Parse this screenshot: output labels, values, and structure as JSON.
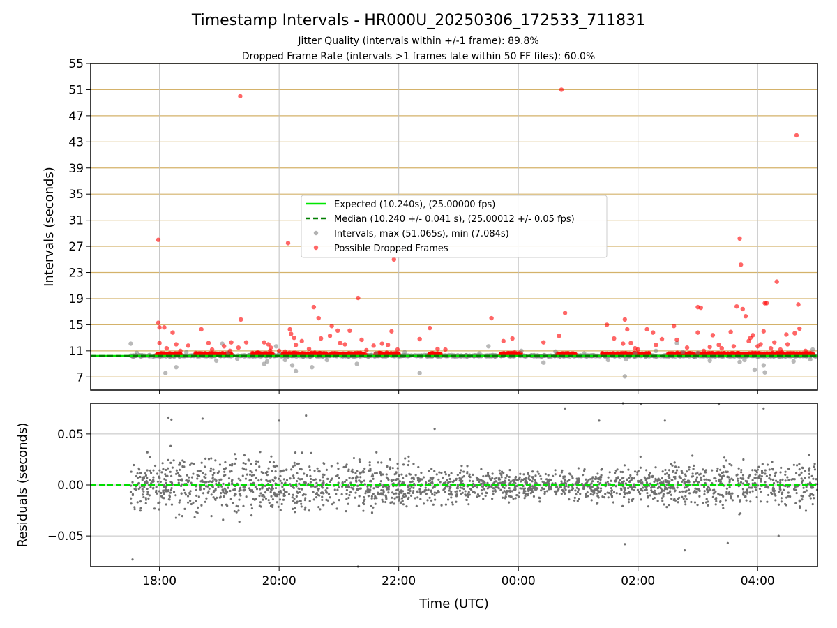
{
  "colors": {
    "expected_line": "#00e600",
    "median_line": "#007f00",
    "intervals_points": "#808080",
    "dropped_points": "#ff0000",
    "residual_points": "#707070",
    "zero_line": "#00dd00",
    "h_gridlines": "#d4b26a",
    "grid": "#c0c0c0",
    "frame": "#000000"
  },
  "chart_data": [
    {
      "type": "scatter",
      "panel": "intervals",
      "title": "Timestamp Intervals - HR000U_20250306_172533_711831",
      "subtitle_1": "Jitter Quality (intervals within +/-1 frame): 89.8%",
      "subtitle_2": "Dropped Frame Rate (intervals >1 frames late within 50 FF files): 60.0%",
      "xlabel": "",
      "ylabel": "Intervals (seconds)",
      "x_unit": "hours_utc",
      "xlim": [
        16.85,
        29.0
      ],
      "ylim": [
        5,
        55
      ],
      "y_ticks": [
        "7",
        "11",
        "15",
        "19",
        "23",
        "27",
        "31",
        "35",
        "39",
        "43",
        "47",
        "51",
        "55"
      ],
      "grid": true,
      "legend_position": "center",
      "legend": [
        "Expected (10.240s), (25.00000 fps)",
        "Median (10.240 +/- 0.041 s), (25.00012 +/- 0.05 fps)",
        "Intervals, max (51.065s), min (7.084s)",
        "Possible Dropped Frames"
      ],
      "expected_value": 10.24,
      "median_value": 10.24,
      "data_range": [
        17.52,
        29.0
      ],
      "dropped_outliers": [
        {
          "x": 17.98,
          "y": 28.0
        },
        {
          "x": 17.98,
          "y": 15.3
        },
        {
          "x": 18.0,
          "y": 14.6
        },
        {
          "x": 18.0,
          "y": 12.2
        },
        {
          "x": 18.08,
          "y": 14.6
        },
        {
          "x": 18.12,
          "y": 11.4
        },
        {
          "x": 18.22,
          "y": 13.8
        },
        {
          "x": 18.28,
          "y": 12.0
        },
        {
          "x": 18.35,
          "y": 11.0
        },
        {
          "x": 18.48,
          "y": 11.8
        },
        {
          "x": 18.7,
          "y": 14.3
        },
        {
          "x": 18.82,
          "y": 12.2
        },
        {
          "x": 18.88,
          "y": 11.2
        },
        {
          "x": 19.08,
          "y": 11.7
        },
        {
          "x": 19.18,
          "y": 11.0
        },
        {
          "x": 19.35,
          "y": 50.0
        },
        {
          "x": 19.36,
          "y": 15.8
        },
        {
          "x": 19.32,
          "y": 11.5
        },
        {
          "x": 19.45,
          "y": 12.3
        },
        {
          "x": 19.2,
          "y": 12.3
        },
        {
          "x": 19.75,
          "y": 12.3
        },
        {
          "x": 19.82,
          "y": 12.0
        },
        {
          "x": 19.86,
          "y": 11.5
        },
        {
          "x": 19.85,
          "y": 11.0
        },
        {
          "x": 20.0,
          "y": 11.0
        },
        {
          "x": 20.1,
          "y": 10.9
        },
        {
          "x": 20.15,
          "y": 27.5
        },
        {
          "x": 20.18,
          "y": 14.3
        },
        {
          "x": 20.2,
          "y": 13.6
        },
        {
          "x": 20.25,
          "y": 13.0
        },
        {
          "x": 20.28,
          "y": 11.9
        },
        {
          "x": 20.38,
          "y": 12.5
        },
        {
          "x": 20.5,
          "y": 11.3
        },
        {
          "x": 20.58,
          "y": 17.7
        },
        {
          "x": 20.66,
          "y": 16.0
        },
        {
          "x": 20.7,
          "y": 12.9
        },
        {
          "x": 20.85,
          "y": 13.3
        },
        {
          "x": 20.88,
          "y": 14.8
        },
        {
          "x": 20.98,
          "y": 14.1
        },
        {
          "x": 21.02,
          "y": 12.2
        },
        {
          "x": 21.1,
          "y": 12.0
        },
        {
          "x": 21.18,
          "y": 14.1
        },
        {
          "x": 21.32,
          "y": 19.1
        },
        {
          "x": 21.38,
          "y": 12.7
        },
        {
          "x": 21.46,
          "y": 11.1
        },
        {
          "x": 21.58,
          "y": 11.8
        },
        {
          "x": 21.72,
          "y": 12.1
        },
        {
          "x": 21.82,
          "y": 11.9
        },
        {
          "x": 21.88,
          "y": 14.0
        },
        {
          "x": 21.92,
          "y": 25.0
        },
        {
          "x": 21.98,
          "y": 11.2
        },
        {
          "x": 22.35,
          "y": 12.8
        },
        {
          "x": 22.52,
          "y": 14.5
        },
        {
          "x": 22.65,
          "y": 11.3
        },
        {
          "x": 22.78,
          "y": 11.2
        },
        {
          "x": 23.55,
          "y": 16.0
        },
        {
          "x": 23.75,
          "y": 12.5
        },
        {
          "x": 23.9,
          "y": 12.9
        },
        {
          "x": 24.42,
          "y": 12.3
        },
        {
          "x": 24.68,
          "y": 13.3
        },
        {
          "x": 24.72,
          "y": 51.0
        },
        {
          "x": 24.78,
          "y": 16.8
        },
        {
          "x": 25.48,
          "y": 15.0
        },
        {
          "x": 25.6,
          "y": 12.9
        },
        {
          "x": 25.75,
          "y": 12.1
        },
        {
          "x": 25.78,
          "y": 15.8
        },
        {
          "x": 25.82,
          "y": 14.3
        },
        {
          "x": 25.88,
          "y": 12.2
        },
        {
          "x": 25.95,
          "y": 11.4
        },
        {
          "x": 26.0,
          "y": 11.2
        },
        {
          "x": 26.15,
          "y": 14.3
        },
        {
          "x": 26.25,
          "y": 13.8
        },
        {
          "x": 26.3,
          "y": 11.9
        },
        {
          "x": 26.4,
          "y": 12.8
        },
        {
          "x": 26.6,
          "y": 14.8
        },
        {
          "x": 26.65,
          "y": 12.7
        },
        {
          "x": 26.82,
          "y": 11.5
        },
        {
          "x": 27.0,
          "y": 17.7
        },
        {
          "x": 27.05,
          "y": 17.6
        },
        {
          "x": 27.0,
          "y": 13.8
        },
        {
          "x": 27.1,
          "y": 11.0
        },
        {
          "x": 27.2,
          "y": 11.6
        },
        {
          "x": 27.25,
          "y": 13.4
        },
        {
          "x": 27.35,
          "y": 11.9
        },
        {
          "x": 27.4,
          "y": 11.4
        },
        {
          "x": 27.55,
          "y": 13.9
        },
        {
          "x": 27.6,
          "y": 11.7
        },
        {
          "x": 27.65,
          "y": 17.8
        },
        {
          "x": 27.7,
          "y": 28.2
        },
        {
          "x": 27.72,
          "y": 24.2
        },
        {
          "x": 27.75,
          "y": 17.4
        },
        {
          "x": 27.8,
          "y": 16.3
        },
        {
          "x": 27.85,
          "y": 12.5
        },
        {
          "x": 27.88,
          "y": 13.0
        },
        {
          "x": 27.92,
          "y": 13.4
        },
        {
          "x": 28.0,
          "y": 11.7
        },
        {
          "x": 28.05,
          "y": 12.0
        },
        {
          "x": 28.1,
          "y": 14.0
        },
        {
          "x": 28.12,
          "y": 18.3
        },
        {
          "x": 28.15,
          "y": 18.3
        },
        {
          "x": 28.22,
          "y": 11.4
        },
        {
          "x": 28.28,
          "y": 12.3
        },
        {
          "x": 28.32,
          "y": 21.6
        },
        {
          "x": 28.38,
          "y": 11.2
        },
        {
          "x": 28.48,
          "y": 13.5
        },
        {
          "x": 28.5,
          "y": 12.0
        },
        {
          "x": 28.62,
          "y": 13.7
        },
        {
          "x": 28.65,
          "y": 44.0
        },
        {
          "x": 28.68,
          "y": 18.1
        },
        {
          "x": 28.7,
          "y": 14.4
        },
        {
          "x": 28.8,
          "y": 11.0
        }
      ],
      "interval_outliers": [
        {
          "x": 17.52,
          "y": 12.1
        },
        {
          "x": 17.62,
          "y": 10.7
        },
        {
          "x": 18.1,
          "y": 7.6
        },
        {
          "x": 18.28,
          "y": 8.5
        },
        {
          "x": 18.45,
          "y": 10.8
        },
        {
          "x": 18.95,
          "y": 9.5
        },
        {
          "x": 19.05,
          "y": 12.1
        },
        {
          "x": 19.15,
          "y": 10.7
        },
        {
          "x": 19.3,
          "y": 9.8
        },
        {
          "x": 19.75,
          "y": 9.0
        },
        {
          "x": 19.8,
          "y": 9.4
        },
        {
          "x": 19.95,
          "y": 11.7
        },
        {
          "x": 20.0,
          "y": 10.6
        },
        {
          "x": 20.1,
          "y": 9.6
        },
        {
          "x": 20.22,
          "y": 8.8
        },
        {
          "x": 20.28,
          "y": 7.9
        },
        {
          "x": 20.55,
          "y": 8.5
        },
        {
          "x": 20.8,
          "y": 9.6
        },
        {
          "x": 21.3,
          "y": 9.0
        },
        {
          "x": 21.62,
          "y": 10.6
        },
        {
          "x": 22.1,
          "y": 10.8
        },
        {
          "x": 22.35,
          "y": 7.6
        },
        {
          "x": 22.8,
          "y": 10.2
        },
        {
          "x": 23.35,
          "y": 10.6
        },
        {
          "x": 23.5,
          "y": 11.7
        },
        {
          "x": 24.05,
          "y": 11.0
        },
        {
          "x": 24.42,
          "y": 9.2
        },
        {
          "x": 24.62,
          "y": 10.9
        },
        {
          "x": 25.1,
          "y": 10.6
        },
        {
          "x": 25.5,
          "y": 9.6
        },
        {
          "x": 25.78,
          "y": 7.1
        },
        {
          "x": 25.8,
          "y": 9.7
        },
        {
          "x": 25.95,
          "y": 10.6
        },
        {
          "x": 26.3,
          "y": 11.0
        },
        {
          "x": 26.65,
          "y": 12.2
        },
        {
          "x": 26.75,
          "y": 10.8
        },
        {
          "x": 27.0,
          "y": 10.7
        },
        {
          "x": 27.2,
          "y": 9.5
        },
        {
          "x": 27.7,
          "y": 9.3
        },
        {
          "x": 27.78,
          "y": 9.6
        },
        {
          "x": 27.95,
          "y": 8.1
        },
        {
          "x": 28.1,
          "y": 8.8
        },
        {
          "x": 28.12,
          "y": 7.7
        },
        {
          "x": 28.6,
          "y": 9.4
        },
        {
          "x": 28.88,
          "y": 9.7
        },
        {
          "x": 28.92,
          "y": 11.2
        }
      ]
    },
    {
      "type": "scatter",
      "panel": "residuals",
      "xlabel": "Time (UTC)",
      "ylabel": "Residuals (seconds)",
      "x_unit": "hours_utc",
      "xlim": [
        16.85,
        29.0
      ],
      "ylim": [
        -0.08,
        0.08
      ],
      "y_ticks": [
        "−0.05",
        "0.00",
        "0.05"
      ],
      "x_ticks": [
        "18:00",
        "20:00",
        "22:00",
        "00:00",
        "02:00",
        "04:00"
      ],
      "grid": true,
      "data_range": [
        17.52,
        29.0
      ],
      "residual_outliers": [
        {
          "x": 17.55,
          "y": -0.073
        },
        {
          "x": 18.2,
          "y": 0.064
        },
        {
          "x": 18.15,
          "y": 0.066
        },
        {
          "x": 18.72,
          "y": 0.065
        },
        {
          "x": 20.0,
          "y": 0.063
        },
        {
          "x": 20.45,
          "y": 0.068
        },
        {
          "x": 21.32,
          "y": -0.08
        },
        {
          "x": 22.6,
          "y": 0.055
        },
        {
          "x": 24.78,
          "y": 0.075
        },
        {
          "x": 25.35,
          "y": 0.063
        },
        {
          "x": 25.75,
          "y": 0.08
        },
        {
          "x": 25.78,
          "y": -0.058
        },
        {
          "x": 26.05,
          "y": 0.079
        },
        {
          "x": 26.45,
          "y": 0.063
        },
        {
          "x": 26.78,
          "y": -0.064
        },
        {
          "x": 27.35,
          "y": 0.079
        },
        {
          "x": 27.5,
          "y": -0.057
        },
        {
          "x": 28.1,
          "y": 0.075
        },
        {
          "x": 28.35,
          "y": -0.05
        }
      ]
    }
  ]
}
